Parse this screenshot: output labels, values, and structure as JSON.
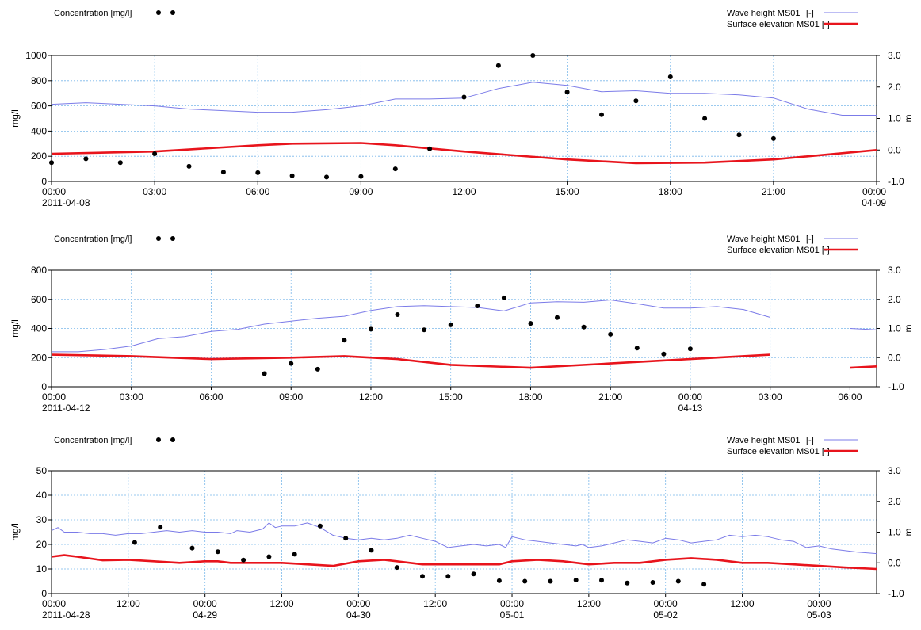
{
  "legend": {
    "concentration": "Concentration [mg/l]",
    "wave": "Wave height MS01",
    "wave_unit": "[-]",
    "surface": "Surface elevation MS01 [-]"
  },
  "colors": {
    "wave": "#7b7be8",
    "surface": "#e8141c",
    "points": "#000000",
    "grid": "#7ab8ea"
  },
  "chart_data": [
    {
      "type": "line",
      "left_axis": {
        "label": "mg/l",
        "ylim": [
          0,
          1000
        ],
        "ticks": [
          "0",
          "200",
          "400",
          "600",
          "800",
          "1000"
        ]
      },
      "right_axis": {
        "label": "m",
        "ylim": [
          -1.0,
          3.0
        ],
        "ticks": [
          "-1.0",
          "0.0",
          "1.0",
          "2.0",
          "3.0"
        ]
      },
      "x_range_hours": [
        0,
        24
      ],
      "x_ticks": [
        {
          "h": 0,
          "t": "00:00",
          "d": "2011-04-08"
        },
        {
          "h": 3,
          "t": "03:00",
          "d": ""
        },
        {
          "h": 6,
          "t": "06:00",
          "d": ""
        },
        {
          "h": 9,
          "t": "09:00",
          "d": ""
        },
        {
          "h": 12,
          "t": "12:00",
          "d": ""
        },
        {
          "h": 15,
          "t": "15:00",
          "d": ""
        },
        {
          "h": 18,
          "t": "18:00",
          "d": ""
        },
        {
          "h": 21,
          "t": "21:00",
          "d": ""
        },
        {
          "h": 24,
          "t": "00:00",
          "d": "04-09"
        }
      ],
      "concentration": [
        [
          0,
          150
        ],
        [
          1,
          180
        ],
        [
          2,
          150
        ],
        [
          3,
          220
        ],
        [
          4,
          120
        ],
        [
          5,
          75
        ],
        [
          6,
          70
        ],
        [
          7,
          45
        ],
        [
          8,
          35
        ],
        [
          9,
          40
        ],
        [
          10,
          100
        ],
        [
          11,
          260
        ],
        [
          12,
          670
        ],
        [
          13,
          920
        ],
        [
          14,
          1000
        ],
        [
          15,
          710
        ],
        [
          16,
          530
        ],
        [
          17,
          640
        ],
        [
          18,
          830
        ],
        [
          19,
          500
        ],
        [
          20,
          370
        ],
        [
          21,
          340
        ]
      ],
      "wave_segments": [
        [
          [
            0,
            1.45
          ],
          [
            1,
            1.5
          ],
          [
            2,
            1.45
          ],
          [
            3,
            1.4
          ],
          [
            4,
            1.3
          ],
          [
            5,
            1.25
          ],
          [
            6,
            1.2
          ],
          [
            7,
            1.2
          ],
          [
            8,
            1.28
          ],
          [
            9,
            1.4
          ],
          [
            10,
            1.62
          ],
          [
            11,
            1.62
          ],
          [
            12,
            1.65
          ],
          [
            13,
            1.95
          ],
          [
            14,
            2.15
          ],
          [
            15,
            2.05
          ],
          [
            16,
            1.85
          ],
          [
            17,
            1.88
          ],
          [
            18,
            1.8
          ],
          [
            19,
            1.8
          ],
          [
            20,
            1.75
          ],
          [
            21,
            1.65
          ],
          [
            22,
            1.3
          ],
          [
            23,
            1.1
          ],
          [
            24,
            1.1
          ]
        ]
      ],
      "surface_segments": [
        [
          [
            0,
            -0.12
          ],
          [
            3,
            -0.05
          ],
          [
            6,
            0.15
          ],
          [
            7,
            0.2
          ],
          [
            9,
            0.22
          ],
          [
            10,
            0.15
          ],
          [
            12,
            -0.05
          ],
          [
            15,
            -0.3
          ],
          [
            17,
            -0.42
          ],
          [
            19,
            -0.4
          ],
          [
            21,
            -0.3
          ],
          [
            24,
            0.0
          ]
        ]
      ]
    },
    {
      "type": "line",
      "left_axis": {
        "label": "mg/l",
        "ylim": [
          0,
          800
        ],
        "ticks": [
          "0",
          "200",
          "400",
          "600",
          "800"
        ]
      },
      "right_axis": {
        "label": "m",
        "ylim": [
          -1.0,
          3.0
        ],
        "ticks": [
          "-1.0",
          "0.0",
          "1.0",
          "2.0",
          "3.0"
        ]
      },
      "x_range_hours": [
        0,
        31
      ],
      "x_ticks": [
        {
          "h": 0,
          "t": "00:00",
          "d": "2011-04-12"
        },
        {
          "h": 3,
          "t": "03:00",
          "d": ""
        },
        {
          "h": 6,
          "t": "06:00",
          "d": ""
        },
        {
          "h": 9,
          "t": "09:00",
          "d": ""
        },
        {
          "h": 12,
          "t": "12:00",
          "d": ""
        },
        {
          "h": 15,
          "t": "15:00",
          "d": ""
        },
        {
          "h": 18,
          "t": "18:00",
          "d": ""
        },
        {
          "h": 21,
          "t": "21:00",
          "d": ""
        },
        {
          "h": 24,
          "t": "00:00",
          "d": "04-13"
        },
        {
          "h": 27,
          "t": "03:00",
          "d": ""
        },
        {
          "h": 30,
          "t": "06:00",
          "d": ""
        }
      ],
      "concentration": [
        [
          8,
          90
        ],
        [
          9,
          160
        ],
        [
          10,
          120
        ],
        [
          11,
          320
        ],
        [
          12,
          395
        ],
        [
          13,
          495
        ],
        [
          14,
          390
        ],
        [
          15,
          425
        ],
        [
          16,
          555
        ],
        [
          17,
          610
        ],
        [
          18,
          435
        ],
        [
          19,
          475
        ],
        [
          20,
          410
        ],
        [
          21,
          360
        ],
        [
          22,
          265
        ],
        [
          23,
          225
        ],
        [
          24,
          260
        ]
      ],
      "wave_segments": [
        [
          [
            0,
            0.2
          ],
          [
            1,
            0.2
          ],
          [
            2,
            0.28
          ],
          [
            3,
            0.4
          ],
          [
            4,
            0.65
          ],
          [
            5,
            0.72
          ],
          [
            6,
            0.9
          ],
          [
            7,
            0.97
          ],
          [
            8,
            1.15
          ],
          [
            9,
            1.25
          ],
          [
            10,
            1.35
          ],
          [
            11,
            1.42
          ],
          [
            12,
            1.62
          ],
          [
            13,
            1.75
          ],
          [
            14,
            1.78
          ],
          [
            15,
            1.75
          ],
          [
            16,
            1.72
          ],
          [
            17,
            1.6
          ],
          [
            18,
            1.88
          ],
          [
            19,
            1.92
          ],
          [
            20,
            1.9
          ],
          [
            21,
            1.98
          ],
          [
            22,
            1.85
          ],
          [
            23,
            1.7
          ],
          [
            24,
            1.7
          ],
          [
            25,
            1.75
          ],
          [
            26,
            1.65
          ],
          [
            27,
            1.38
          ]
        ],
        [
          [
            30,
            1.0
          ],
          [
            31,
            0.95
          ]
        ]
      ],
      "surface_segments": [
        [
          [
            0,
            0.1
          ],
          [
            3,
            0.05
          ],
          [
            6,
            -0.05
          ],
          [
            9,
            0.0
          ],
          [
            11,
            0.05
          ],
          [
            13,
            -0.05
          ],
          [
            15,
            -0.25
          ],
          [
            18,
            -0.35
          ],
          [
            21,
            -0.2
          ],
          [
            24,
            -0.05
          ],
          [
            27,
            0.1
          ]
        ],
        [
          [
            30,
            -0.35
          ],
          [
            31,
            -0.3
          ]
        ]
      ]
    },
    {
      "type": "line",
      "left_axis": {
        "label": "mg/l",
        "ylim": [
          0,
          50
        ],
        "ticks": [
          "0",
          "10",
          "20",
          "30",
          "40",
          "50"
        ]
      },
      "right_axis": {
        "label": "m",
        "ylim": [
          -1.0,
          3.0
        ],
        "ticks": [
          "-1.0",
          "0.0",
          "1.0",
          "2.0",
          "3.0"
        ]
      },
      "x_range_hours": [
        0,
        129
      ],
      "x_ticks": [
        {
          "h": 0,
          "t": "00:00",
          "d": "2011-04-28"
        },
        {
          "h": 12,
          "t": "12:00",
          "d": ""
        },
        {
          "h": 24,
          "t": "00:00",
          "d": "04-29"
        },
        {
          "h": 36,
          "t": "12:00",
          "d": ""
        },
        {
          "h": 48,
          "t": "00:00",
          "d": "04-30"
        },
        {
          "h": 60,
          "t": "12:00",
          "d": ""
        },
        {
          "h": 72,
          "t": "00:00",
          "d": "05-01"
        },
        {
          "h": 84,
          "t": "12:00",
          "d": ""
        },
        {
          "h": 96,
          "t": "00:00",
          "d": "05-02"
        },
        {
          "h": 108,
          "t": "12:00",
          "d": ""
        },
        {
          "h": 120,
          "t": "00:00",
          "d": "05-03"
        }
      ],
      "concentration": [
        [
          13,
          20.8
        ],
        [
          17,
          27
        ],
        [
          22,
          18.5
        ],
        [
          26,
          17
        ],
        [
          30,
          13.6
        ],
        [
          34,
          15
        ],
        [
          38,
          16
        ],
        [
          42,
          27.5
        ],
        [
          46,
          22.5
        ],
        [
          50,
          17.6
        ],
        [
          54,
          10.6
        ],
        [
          58,
          7
        ],
        [
          62,
          7
        ],
        [
          66,
          8
        ],
        [
          70,
          5.2
        ],
        [
          74,
          5
        ],
        [
          78,
          5
        ],
        [
          82,
          5.5
        ],
        [
          86,
          5.4
        ],
        [
          90,
          4.3
        ],
        [
          94,
          4.5
        ],
        [
          98,
          5
        ],
        [
          102,
          3.8
        ]
      ],
      "wave_segments": [
        [
          [
            0,
            1.05
          ],
          [
            1,
            1.15
          ],
          [
            2,
            1.0
          ],
          [
            4,
            1.0
          ],
          [
            6,
            0.95
          ],
          [
            8,
            0.95
          ],
          [
            10,
            0.9
          ],
          [
            12,
            0.95
          ],
          [
            14,
            0.95
          ],
          [
            16,
            1.0
          ],
          [
            18,
            1.05
          ],
          [
            20,
            1.0
          ],
          [
            22,
            1.05
          ],
          [
            24,
            1.0
          ],
          [
            26,
            1.0
          ],
          [
            28,
            0.95
          ],
          [
            29,
            1.05
          ],
          [
            31,
            1.0
          ],
          [
            33,
            1.1
          ],
          [
            34,
            1.3
          ],
          [
            35,
            1.15
          ],
          [
            36,
            1.2
          ],
          [
            38,
            1.2
          ],
          [
            40,
            1.3
          ],
          [
            42,
            1.15
          ],
          [
            44,
            0.9
          ],
          [
            46,
            0.8
          ],
          [
            48,
            0.75
          ],
          [
            50,
            0.8
          ],
          [
            52,
            0.75
          ],
          [
            54,
            0.8
          ],
          [
            56,
            0.9
          ],
          [
            58,
            0.8
          ],
          [
            60,
            0.7
          ],
          [
            62,
            0.5
          ],
          [
            64,
            0.55
          ],
          [
            66,
            0.6
          ],
          [
            68,
            0.55
          ],
          [
            70,
            0.6
          ],
          [
            71,
            0.5
          ],
          [
            72,
            0.85
          ],
          [
            74,
            0.75
          ],
          [
            76,
            0.7
          ],
          [
            78,
            0.65
          ],
          [
            80,
            0.6
          ],
          [
            82,
            0.55
          ],
          [
            83,
            0.6
          ],
          [
            84,
            0.5
          ],
          [
            86,
            0.55
          ],
          [
            88,
            0.65
          ],
          [
            90,
            0.75
          ],
          [
            92,
            0.7
          ],
          [
            94,
            0.65
          ],
          [
            96,
            0.8
          ],
          [
            98,
            0.75
          ],
          [
            100,
            0.65
          ],
          [
            102,
            0.7
          ],
          [
            104,
            0.75
          ],
          [
            106,
            0.9
          ],
          [
            108,
            0.85
          ],
          [
            110,
            0.9
          ],
          [
            112,
            0.85
          ],
          [
            114,
            0.75
          ],
          [
            116,
            0.7
          ],
          [
            118,
            0.5
          ],
          [
            120,
            0.55
          ],
          [
            122,
            0.45
          ],
          [
            124,
            0.4
          ],
          [
            126,
            0.35
          ],
          [
            129,
            0.3
          ]
        ]
      ],
      "surface_segments": [
        [
          [
            0,
            0.2
          ],
          [
            2,
            0.25
          ],
          [
            4,
            0.2
          ],
          [
            8,
            0.08
          ],
          [
            12,
            0.1
          ],
          [
            16,
            0.05
          ],
          [
            20,
            0.0
          ],
          [
            24,
            0.05
          ],
          [
            26,
            0.05
          ],
          [
            28,
            0.0
          ],
          [
            32,
            0.0
          ],
          [
            36,
            0.0
          ],
          [
            40,
            -0.05
          ],
          [
            44,
            -0.1
          ],
          [
            48,
            0.05
          ],
          [
            52,
            0.1
          ],
          [
            54,
            0.05
          ],
          [
            58,
            -0.05
          ],
          [
            62,
            -0.05
          ],
          [
            66,
            -0.05
          ],
          [
            70,
            -0.05
          ],
          [
            72,
            0.05
          ],
          [
            76,
            0.1
          ],
          [
            80,
            0.05
          ],
          [
            84,
            -0.05
          ],
          [
            88,
            0.0
          ],
          [
            92,
            0.0
          ],
          [
            96,
            0.1
          ],
          [
            100,
            0.15
          ],
          [
            104,
            0.1
          ],
          [
            108,
            0.0
          ],
          [
            112,
            0.0
          ],
          [
            116,
            -0.05
          ],
          [
            120,
            -0.1
          ],
          [
            124,
            -0.15
          ],
          [
            129,
            -0.2
          ]
        ]
      ]
    }
  ]
}
